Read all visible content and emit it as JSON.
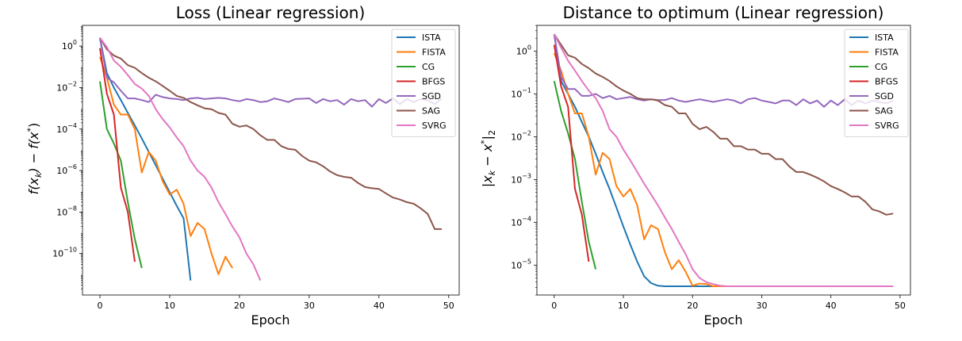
{
  "chart_data": [
    {
      "type": "line",
      "title": "Loss (Linear regression)",
      "xlabel": "Epoch",
      "ylabel": "f(x_k) − f(x*)",
      "ylabel_parts": {
        "a": "f(x",
        "b": "k",
        "c": ") − f(x",
        "d": "*",
        "e": ")"
      },
      "xscale": "linear",
      "yscale": "log",
      "xlim": [
        -2.5,
        51.5
      ],
      "ylim": [
        1e-12,
        10
      ],
      "xticks": [
        0,
        10,
        20,
        30,
        40,
        50
      ],
      "yticks": [
        {
          "value": 1,
          "base": "10",
          "exp": "0"
        },
        {
          "value": 0.01,
          "base": "10",
          "exp": "−2"
        },
        {
          "value": 0.0001,
          "base": "10",
          "exp": "−4"
        },
        {
          "value": 1e-06,
          "base": "10",
          "exp": "−6"
        },
        {
          "value": 1e-08,
          "base": "10",
          "exp": "−8"
        },
        {
          "value": 1e-10,
          "base": "10",
          "exp": "−10"
        }
      ],
      "legend_position": "top-right",
      "series": [
        {
          "name": "ISTA",
          "color": "#1f77b4",
          "x": [
            0,
            1,
            2,
            3,
            4,
            5,
            6,
            7,
            8,
            9,
            10,
            11,
            12,
            13
          ],
          "y": [
            2.5,
            0.05,
            0.01,
            0.0025,
            0.0006,
            0.00015,
            3.5e-05,
            8e-06,
            1.8e-06,
            4e-07,
            9e-08,
            2e-08,
            5e-09,
            5e-12
          ]
        },
        {
          "name": "FISTA",
          "color": "#ff7f0e",
          "x": [
            0,
            1,
            2,
            3,
            4,
            5,
            6,
            7,
            8,
            9,
            10,
            11,
            12,
            13,
            14,
            15,
            16,
            17,
            18,
            19
          ],
          "y": [
            0.3,
            0.03,
            0.0015,
            0.0005,
            0.0005,
            0.0001,
            8e-07,
            8e-06,
            3e-06,
            3e-07,
            7e-08,
            1.2e-07,
            2.5e-08,
            7e-10,
            3e-09,
            1.5e-09,
            1e-10,
            1e-11,
            7e-11,
            2e-11
          ]
        },
        {
          "name": "CG",
          "color": "#2ca02c",
          "x": [
            0,
            1,
            2,
            3,
            4,
            5,
            6
          ],
          "y": [
            0.02,
            0.0001,
            2e-05,
            3e-06,
            3e-08,
            5e-10,
            2e-11
          ]
        },
        {
          "name": "BFGS",
          "color": "#d62728",
          "x": [
            0,
            1,
            2,
            3,
            4,
            5
          ],
          "y": [
            0.8,
            0.005,
            0.0005,
            1.5e-07,
            1e-08,
            4e-11
          ]
        },
        {
          "name": "SGD",
          "color": "#9467bd",
          "x": [
            0,
            1,
            2,
            3,
            4,
            5,
            6,
            7,
            8,
            9,
            10,
            11,
            12,
            13,
            14,
            15,
            16,
            17,
            18,
            19,
            20,
            21,
            22,
            23,
            24,
            25,
            26,
            27,
            28,
            29,
            30,
            31,
            32,
            33,
            34,
            35,
            36,
            37,
            38,
            39,
            40,
            41,
            42,
            43,
            44,
            45,
            46,
            47,
            48,
            49
          ],
          "y": [
            2.5,
            0.03,
            0.018,
            0.007,
            0.003,
            0.003,
            0.0025,
            0.002,
            0.0045,
            0.0035,
            0.003,
            0.0028,
            0.0025,
            0.003,
            0.0032,
            0.0028,
            0.003,
            0.0032,
            0.003,
            0.0025,
            0.0022,
            0.0028,
            0.0025,
            0.002,
            0.0022,
            0.003,
            0.0025,
            0.002,
            0.0028,
            0.0029,
            0.003,
            0.0018,
            0.0028,
            0.0022,
            0.0025,
            0.0015,
            0.0028,
            0.0022,
            0.0025,
            0.0012,
            0.0028,
            0.0018,
            0.003,
            0.0016,
            0.0028,
            0.002,
            0.0028,
            0.0025,
            0.0016,
            0.003
          ]
        },
        {
          "name": "SAG",
          "color": "#8c564b",
          "x": [
            0,
            1,
            2,
            3,
            4,
            5,
            6,
            7,
            8,
            9,
            10,
            11,
            12,
            13,
            14,
            15,
            16,
            17,
            18,
            19,
            20,
            21,
            22,
            23,
            24,
            25,
            26,
            27,
            28,
            29,
            30,
            31,
            32,
            33,
            34,
            35,
            36,
            37,
            38,
            39,
            40,
            41,
            42,
            43,
            44,
            45,
            46,
            47,
            48,
            49
          ],
          "y": [
            2.5,
            0.7,
            0.35,
            0.25,
            0.12,
            0.09,
            0.05,
            0.03,
            0.02,
            0.012,
            0.007,
            0.004,
            0.0032,
            0.002,
            0.0014,
            0.001,
            0.0009,
            0.0006,
            0.0005,
            0.00018,
            0.00013,
            0.00015,
            0.0001,
            5e-05,
            3e-05,
            3e-05,
            1.5e-05,
            1.1e-05,
            1e-05,
            5e-06,
            3e-06,
            2.5e-06,
            1.6e-06,
            9e-07,
            6e-07,
            5e-07,
            4.5e-07,
            2.5e-07,
            1.6e-07,
            1.4e-07,
            1.3e-07,
            8e-08,
            5e-08,
            4e-08,
            3e-08,
            2.5e-08,
            1.5e-08,
            8e-09,
            1.5e-09,
            1.5e-09
          ]
        },
        {
          "name": "SVRG",
          "color": "#e377c2",
          "x": [
            0,
            1,
            2,
            3,
            4,
            5,
            6,
            7,
            8,
            9,
            10,
            11,
            12,
            13,
            14,
            15,
            16,
            17,
            18,
            19,
            20,
            21,
            22,
            23
          ],
          "y": [
            2.5,
            0.9,
            0.2,
            0.1,
            0.04,
            0.015,
            0.009,
            0.004,
            0.0009,
            0.0003,
            0.00012,
            4e-05,
            1.5e-05,
            3e-06,
            1e-06,
            5e-07,
            1.5e-07,
            3e-08,
            8e-09,
            2e-09,
            6e-10,
            1e-10,
            3e-11,
            5e-12
          ]
        }
      ]
    },
    {
      "type": "line",
      "title": "Distance to optimum (Linear regression)",
      "xlabel": "Epoch",
      "ylabel": "|x_k − x*|_2",
      "ylabel_parts": {
        "a": "|x",
        "b": "k",
        "c": " − x",
        "d": "*",
        "e": "|",
        "f": "2"
      },
      "xscale": "linear",
      "yscale": "log",
      "xlim": [
        -2.5,
        51.5
      ],
      "ylim": [
        2e-06,
        4
      ],
      "xticks": [
        0,
        10,
        20,
        30,
        40,
        50
      ],
      "yticks": [
        {
          "value": 1,
          "base": "10",
          "exp": "0"
        },
        {
          "value": 0.1,
          "base": "10",
          "exp": "−1"
        },
        {
          "value": 0.01,
          "base": "10",
          "exp": "−2"
        },
        {
          "value": 0.001,
          "base": "10",
          "exp": "−3"
        },
        {
          "value": 0.0001,
          "base": "10",
          "exp": "−4"
        },
        {
          "value": 1e-05,
          "base": "10",
          "exp": "−5"
        }
      ],
      "legend_position": "top-right",
      "series": [
        {
          "name": "ISTA",
          "color": "#1f77b4",
          "x": [
            0,
            1,
            2,
            3,
            4,
            5,
            6,
            7,
            8,
            9,
            10,
            11,
            12,
            13,
            14,
            15,
            16,
            17,
            18,
            19,
            20,
            21,
            22,
            23,
            24,
            25,
            26,
            27,
            28,
            29,
            30,
            31,
            32,
            33,
            34,
            35,
            36,
            37,
            38,
            39,
            40,
            41,
            42,
            43,
            44,
            45,
            46,
            47,
            48,
            49
          ],
          "y": [
            2.5,
            0.2,
            0.1,
            0.05,
            0.022,
            0.01,
            0.004,
            0.0015,
            0.0006,
            0.00022,
            8e-05,
            3e-05,
            1.2e-05,
            5.5e-06,
            3.8e-06,
            3.3e-06,
            3.2e-06,
            3.2e-06,
            3.2e-06,
            3.2e-06,
            3.2e-06,
            3.2e-06,
            3.2e-06,
            3.2e-06,
            3.2e-06,
            3.2e-06,
            3.2e-06,
            3.2e-06,
            3.2e-06,
            3.2e-06,
            3.2e-06,
            3.2e-06,
            3.2e-06,
            3.2e-06,
            3.2e-06,
            3.2e-06,
            3.2e-06,
            3.2e-06,
            3.2e-06,
            3.2e-06,
            3.2e-06,
            3.2e-06,
            3.2e-06,
            3.2e-06,
            3.2e-06,
            3.2e-06,
            3.2e-06,
            3.2e-06,
            3.2e-06,
            3.2e-06
          ]
        },
        {
          "name": "FISTA",
          "color": "#ff7f0e",
          "x": [
            0,
            1,
            2,
            3,
            4,
            5,
            6,
            7,
            8,
            9,
            10,
            11,
            12,
            13,
            14,
            15,
            16,
            17,
            18,
            19,
            20,
            21,
            22,
            23,
            24,
            25,
            26,
            27,
            28,
            29,
            30,
            31,
            32,
            33,
            34,
            35,
            36,
            37,
            38,
            39,
            40,
            41,
            42,
            43,
            44,
            45,
            46,
            47,
            48,
            49
          ],
          "y": [
            0.9,
            0.35,
            0.1,
            0.035,
            0.035,
            0.01,
            0.0013,
            0.0042,
            0.003,
            0.0007,
            0.0004,
            0.0006,
            0.00025,
            4e-05,
            8.5e-05,
            7e-05,
            2e-05,
            8e-06,
            1.3e-05,
            7e-06,
            3.3e-06,
            3.7e-06,
            3.6e-06,
            3.2e-06,
            3.2e-06,
            3.2e-06,
            3.2e-06,
            3.2e-06,
            3.2e-06,
            3.2e-06,
            3.2e-06,
            3.2e-06,
            3.2e-06,
            3.2e-06,
            3.2e-06,
            3.2e-06,
            3.2e-06,
            3.2e-06,
            3.2e-06,
            3.2e-06,
            3.2e-06,
            3.2e-06,
            3.2e-06,
            3.2e-06,
            3.2e-06,
            3.2e-06,
            3.2e-06,
            3.2e-06,
            3.2e-06,
            3.2e-06
          ]
        },
        {
          "name": "CG",
          "color": "#2ca02c",
          "x": [
            0,
            1,
            2,
            3,
            4,
            5,
            6
          ],
          "y": [
            0.2,
            0.04,
            0.012,
            0.003,
            0.0003,
            3.5e-05,
            8e-06
          ]
        },
        {
          "name": "BFGS",
          "color": "#d62728",
          "x": [
            0,
            1,
            2,
            3,
            4,
            5
          ],
          "y": [
            1.4,
            0.15,
            0.05,
            0.0006,
            0.00015,
            1.2e-05
          ]
        },
        {
          "name": "SGD",
          "color": "#9467bd",
          "x": [
            0,
            1,
            2,
            3,
            4,
            5,
            6,
            7,
            8,
            9,
            10,
            11,
            12,
            13,
            14,
            15,
            16,
            17,
            18,
            19,
            20,
            21,
            22,
            23,
            24,
            25,
            26,
            27,
            28,
            29,
            30,
            31,
            32,
            33,
            34,
            35,
            36,
            37,
            38,
            39,
            40,
            41,
            42,
            43,
            44,
            45,
            46,
            47,
            48,
            49
          ],
          "y": [
            2.5,
            0.25,
            0.13,
            0.13,
            0.09,
            0.09,
            0.1,
            0.08,
            0.09,
            0.075,
            0.08,
            0.085,
            0.075,
            0.07,
            0.075,
            0.072,
            0.072,
            0.08,
            0.07,
            0.065,
            0.07,
            0.075,
            0.07,
            0.065,
            0.07,
            0.075,
            0.07,
            0.06,
            0.075,
            0.08,
            0.07,
            0.065,
            0.06,
            0.07,
            0.07,
            0.055,
            0.075,
            0.06,
            0.07,
            0.05,
            0.07,
            0.055,
            0.075,
            0.055,
            0.07,
            0.06,
            0.07,
            0.065,
            0.06,
            0.07
          ]
        },
        {
          "name": "SAG",
          "color": "#8c564b",
          "x": [
            0,
            1,
            2,
            3,
            4,
            5,
            6,
            7,
            8,
            9,
            10,
            11,
            12,
            13,
            14,
            15,
            16,
            17,
            18,
            19,
            20,
            21,
            22,
            23,
            24,
            25,
            26,
            27,
            28,
            29,
            30,
            31,
            32,
            33,
            34,
            35,
            36,
            37,
            38,
            39,
            40,
            41,
            42,
            43,
            44,
            45,
            46,
            47,
            48,
            49
          ],
          "y": [
            2.5,
            1.4,
            0.8,
            0.7,
            0.5,
            0.4,
            0.3,
            0.25,
            0.2,
            0.15,
            0.12,
            0.1,
            0.08,
            0.075,
            0.075,
            0.07,
            0.055,
            0.05,
            0.035,
            0.035,
            0.02,
            0.015,
            0.017,
            0.013,
            0.009,
            0.009,
            0.006,
            0.006,
            0.005,
            0.005,
            0.004,
            0.004,
            0.003,
            0.003,
            0.002,
            0.0015,
            0.0015,
            0.0013,
            0.0011,
            0.0009,
            0.0007,
            0.0006,
            0.0005,
            0.0004,
            0.0004,
            0.0003,
            0.0002,
            0.00018,
            0.00015,
            0.00016
          ]
        },
        {
          "name": "SVRG",
          "color": "#e377c2",
          "x": [
            0,
            1,
            2,
            3,
            4,
            5,
            6,
            7,
            8,
            9,
            10,
            11,
            12,
            13,
            14,
            15,
            16,
            17,
            18,
            19,
            20,
            21,
            22,
            23,
            24,
            25,
            26,
            27,
            28,
            29,
            30,
            31,
            32,
            33,
            34,
            35,
            36,
            37,
            38,
            39,
            40,
            41,
            42,
            43,
            44,
            45,
            46,
            47,
            48,
            49
          ],
          "y": [
            2.5,
            1.2,
            0.6,
            0.35,
            0.2,
            0.12,
            0.08,
            0.04,
            0.015,
            0.01,
            0.005,
            0.0028,
            0.0015,
            0.0008,
            0.00045,
            0.00025,
            0.00013,
            7e-05,
            3.5e-05,
            1.8e-05,
            8e-06,
            5e-06,
            4e-06,
            3.6e-06,
            3.3e-06,
            3.2e-06,
            3.2e-06,
            3.2e-06,
            3.2e-06,
            3.2e-06,
            3.2e-06,
            3.2e-06,
            3.2e-06,
            3.2e-06,
            3.2e-06,
            3.2e-06,
            3.2e-06,
            3.2e-06,
            3.2e-06,
            3.2e-06,
            3.2e-06,
            3.2e-06,
            3.2e-06,
            3.2e-06,
            3.2e-06,
            3.2e-06,
            3.2e-06,
            3.2e-06,
            3.2e-06,
            3.2e-06
          ]
        }
      ]
    }
  ]
}
